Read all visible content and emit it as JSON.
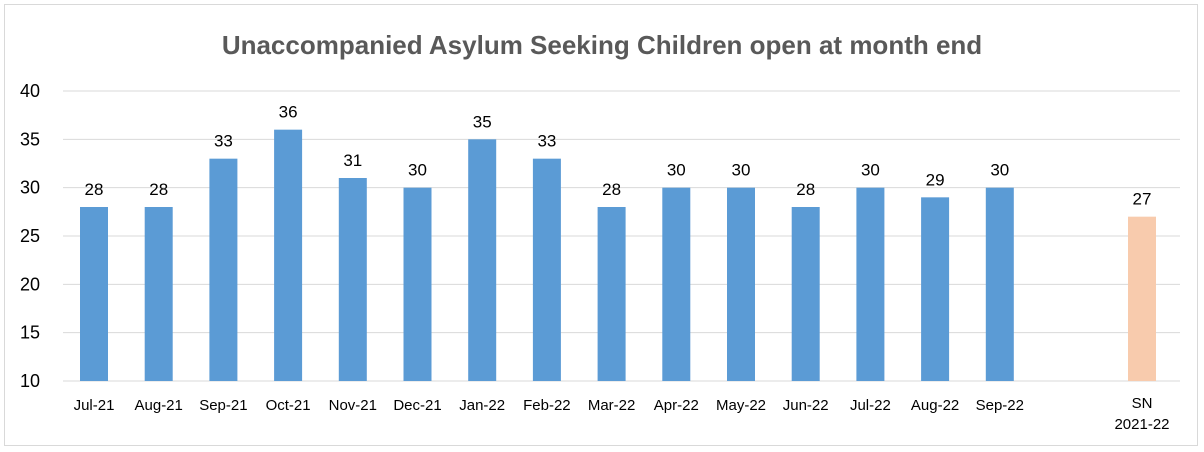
{
  "chart_data": {
    "type": "bar",
    "title": "Unaccompanied Asylum Seeking Children open at month end",
    "xlabel": "",
    "ylabel": "",
    "ylim": [
      10,
      40
    ],
    "yticks": [
      10,
      15,
      20,
      25,
      30,
      35,
      40
    ],
    "grid": true,
    "legend": "none",
    "categories": [
      "Jul-21",
      "Aug-21",
      "Sep-21",
      "Oct-21",
      "Nov-21",
      "Dec-21",
      "Jan-22",
      "Feb-22",
      "Mar-22",
      "Apr-22",
      "May-22",
      "Jun-22",
      "Jul-22",
      "Aug-22",
      "Sep-22",
      "SN 2021-22"
    ],
    "values": [
      28,
      28,
      33,
      36,
      31,
      30,
      35,
      33,
      28,
      30,
      30,
      28,
      30,
      29,
      30,
      27
    ],
    "colors": {
      "monthly": "#5b9bd5",
      "benchmark": "#f8cbad"
    }
  }
}
